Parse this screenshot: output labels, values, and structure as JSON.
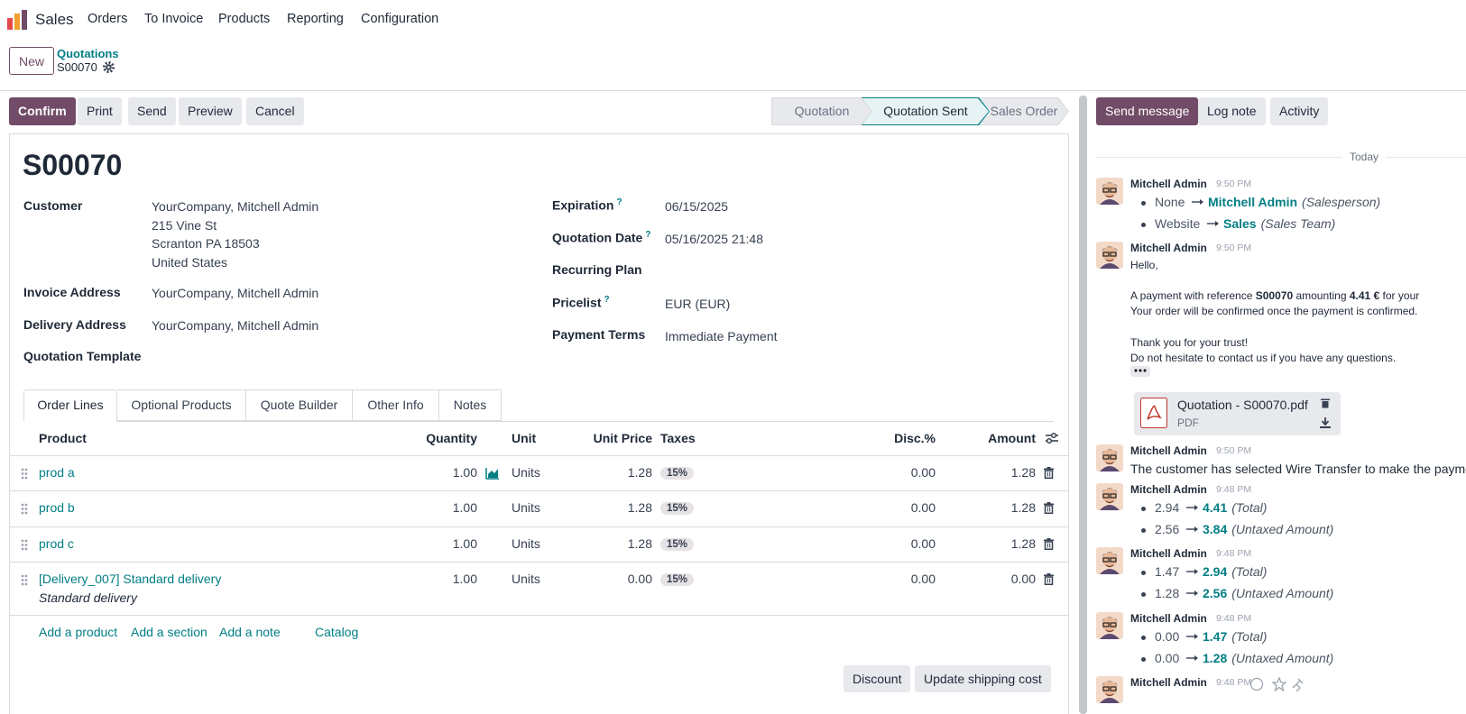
{
  "navbar": {
    "app": "Sales",
    "menu": [
      "Orders",
      "To Invoice",
      "Products",
      "Reporting",
      "Configuration"
    ]
  },
  "control_panel": {
    "new_button": "New",
    "breadcrumb": "Quotations",
    "record": "S00070"
  },
  "actions": [
    "Confirm",
    "Print",
    "Send",
    "Preview",
    "Cancel"
  ],
  "status": {
    "steps": [
      "Quotation",
      "Quotation Sent",
      "Sales Order"
    ],
    "active": 1
  },
  "form": {
    "title": "S00070",
    "left_fields": [
      {
        "label": "Customer",
        "value": [
          "YourCompany, Mitchell Admin",
          "215 Vine St",
          "Scranton PA 18503",
          "United States"
        ]
      },
      {
        "label": "Invoice Address",
        "value": [
          "YourCompany, Mitchell Admin"
        ]
      },
      {
        "label": "Delivery Address",
        "value": [
          "YourCompany, Mitchell Admin"
        ]
      },
      {
        "label": "Quotation Template",
        "value": []
      }
    ],
    "right_fields": [
      {
        "label": "Expiration",
        "help": "?",
        "value": "06/15/2025"
      },
      {
        "label": "Quotation Date",
        "help": "?",
        "value": "05/16/2025 21:48"
      },
      {
        "label": "Recurring Plan"
      },
      {
        "label": "Pricelist",
        "help": "?",
        "value": "EUR (EUR)"
      },
      {
        "label": "Payment Terms",
        "value": "Immediate Payment"
      }
    ]
  },
  "tabs": {
    "items": [
      "Order Lines",
      "Optional Products",
      "Quote Builder",
      "Other Info",
      "Notes"
    ],
    "active": 0
  },
  "table": {
    "headers": [
      "Product",
      "Quantity",
      "Unit",
      "Unit Price",
      "Taxes",
      "Disc.%",
      "Amount"
    ],
    "rows": [
      {
        "cells": [
          "prod a",
          "1.00",
          "Units",
          "1.28",
          "15%",
          "0.00",
          "1.28"
        ]
      },
      {
        "cells": [
          "prod b",
          "1.00",
          "Units",
          "1.28",
          "15%",
          "0.00",
          "1.28"
        ]
      },
      {
        "cells": [
          "prod c",
          "1.00",
          "Units",
          "1.28",
          "15%",
          "0.00",
          "1.28"
        ]
      },
      {
        "cells": [
          "[Delivery_007] Standard delivery",
          "1.00",
          "Units",
          "0.00",
          "15%",
          "0.00",
          "0.00"
        ],
        "note": "Standard delivery"
      }
    ]
  },
  "add_links": [
    "Add a product",
    "Add a section",
    "Add a note",
    "Catalog"
  ],
  "footer_buttons": [
    "Discount",
    "Update shipping cost"
  ],
  "chatter": {
    "buttons": [
      "Send message",
      "Log note",
      "Activity"
    ],
    "date_separator": "Today",
    "messages": [
      {
        "author": "Mitchell Admin",
        "time": "9:50 PM",
        "tracking": [
          {
            "old": "None",
            "new": "Mitchell Admin",
            "field": "(Salesperson)"
          },
          {
            "old": "Website",
            "new": "Sales",
            "field": "(Sales Team)"
          }
        ]
      },
      {
        "author": "Mitchell Admin",
        "time": "9:50 PM",
        "body": [
          [
            {
              "text": "Hello,"
            }
          ],
          [
            {
              "text": "A payment with reference "
            },
            {
              "text": "S00070",
              "bold": true
            },
            {
              "text": " amounting "
            },
            {
              "text": "4.41 €",
              "bold": true
            },
            {
              "text": " for your"
            }
          ],
          [
            {
              "text": "Your order will be confirmed once the payment is confirmed."
            }
          ],
          [
            {
              "text": "Thank you for your trust!"
            }
          ],
          [
            {
              "text": "Do not hesitate to contact us if you have any questions."
            }
          ]
        ],
        "attachment": {
          "name": "Quotation - S00070.pdf",
          "type": "PDF"
        }
      },
      {
        "author": "Mitchell Admin",
        "time": "9:50 PM",
        "text": "The customer has selected Wire Transfer to make the payment."
      },
      {
        "author": "Mitchell Admin",
        "time": "9:48 PM",
        "tracking": [
          {
            "old": "2.94",
            "new": "4.41",
            "field": "(Total)"
          },
          {
            "old": "2.56",
            "new": "3.84",
            "field": "(Untaxed Amount)"
          }
        ]
      },
      {
        "author": "Mitchell Admin",
        "time": "9:48 PM",
        "tracking": [
          {
            "old": "1.47",
            "new": "2.94",
            "field": "(Total)"
          },
          {
            "old": "1.28",
            "new": "2.56",
            "field": "(Untaxed Amount)"
          }
        ]
      },
      {
        "author": "Mitchell Admin",
        "time": "9:48 PM",
        "tracking": [
          {
            "old": "0.00",
            "new": "1.47",
            "field": "(Total)"
          },
          {
            "old": "0.00",
            "new": "1.28",
            "field": "(Untaxed Amount)"
          }
        ]
      },
      {
        "author": "Mitchell Admin",
        "time": "9:48 PM"
      }
    ]
  }
}
